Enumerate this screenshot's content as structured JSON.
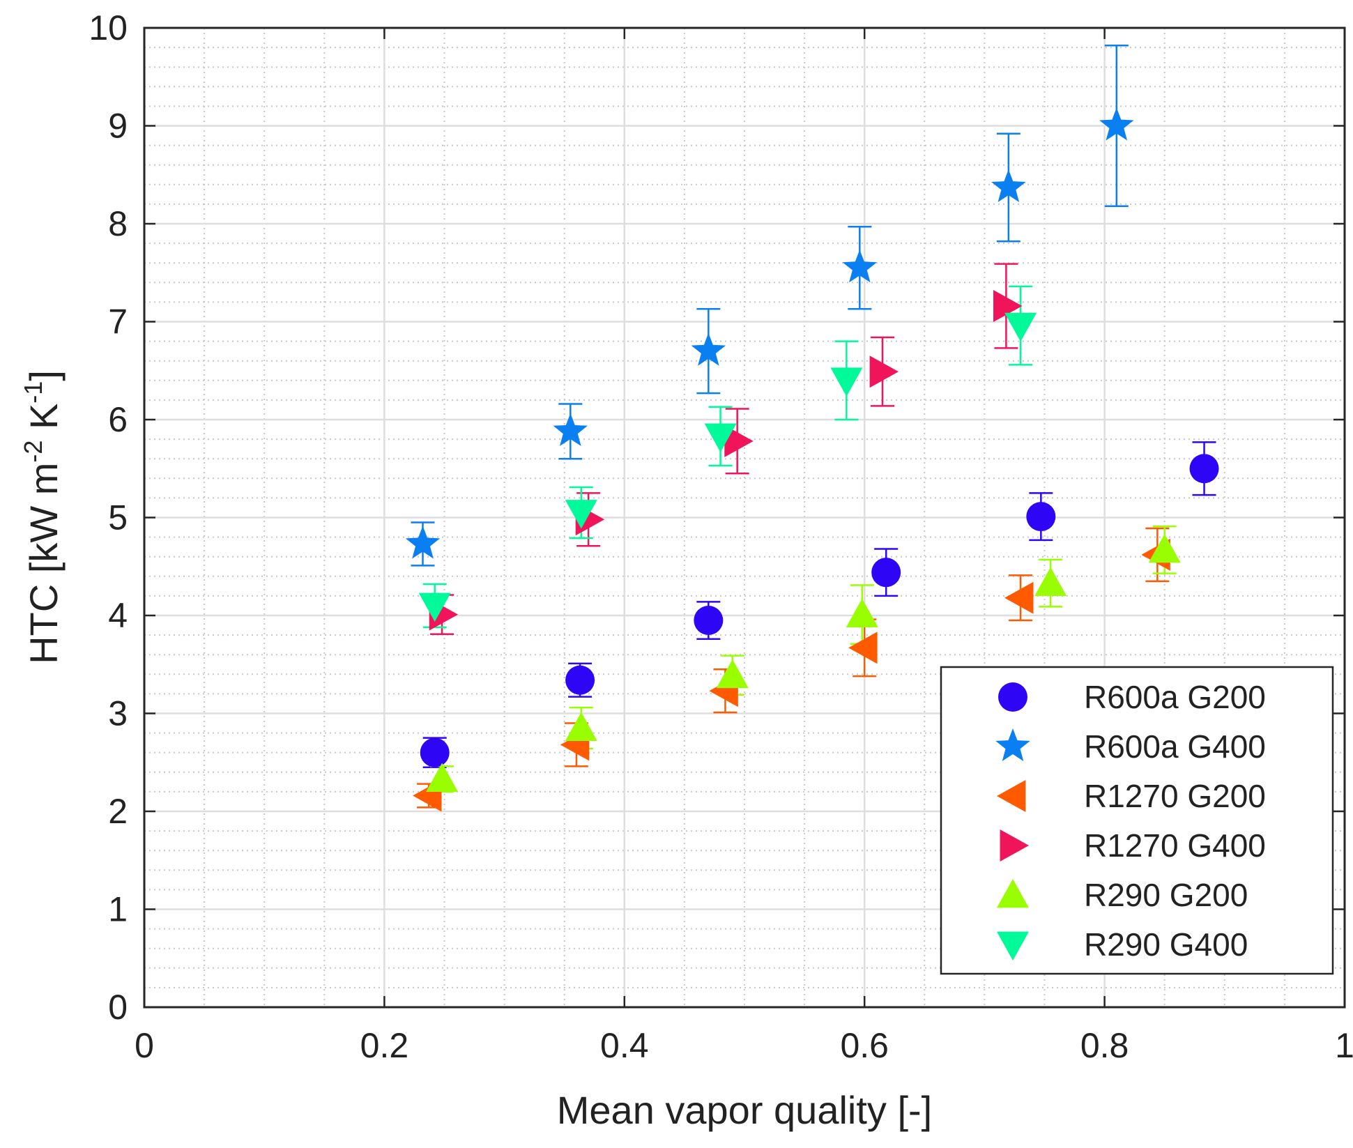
{
  "chart_data": {
    "type": "scatter",
    "title": "",
    "xlabel": "Mean vapor quality [-]",
    "ylabel": {
      "prefix": "HTC [kW m",
      "sup1": "-2",
      "mid": " K",
      "sup2": "-1",
      "suffix": "]"
    },
    "xlim": [
      0,
      1
    ],
    "ylim": [
      0,
      10
    ],
    "xticks": [
      "0",
      "0.2",
      "0.4",
      "0.6",
      "0.8",
      "1"
    ],
    "yticks": [
      "0",
      "1",
      "2",
      "3",
      "4",
      "5",
      "6",
      "7",
      "8",
      "9",
      "10"
    ],
    "grid": true,
    "minor_grid": true,
    "legend_position": "bottom-right",
    "series": [
      {
        "name": "R600a G200",
        "marker": "circle",
        "color": "#2E05F5",
        "points": [
          {
            "x": 0.242,
            "y": 2.6,
            "err": 0.15
          },
          {
            "x": 0.363,
            "y": 3.34,
            "err": 0.17
          },
          {
            "x": 0.47,
            "y": 3.95,
            "err": 0.19
          },
          {
            "x": 0.618,
            "y": 4.44,
            "err": 0.24
          },
          {
            "x": 0.747,
            "y": 5.01,
            "err": 0.24
          },
          {
            "x": 0.883,
            "y": 5.5,
            "err": 0.27
          }
        ]
      },
      {
        "name": "R600a G400",
        "marker": "star",
        "color": "#0A7FF2",
        "points": [
          {
            "x": 0.232,
            "y": 4.73,
            "err": 0.22
          },
          {
            "x": 0.355,
            "y": 5.88,
            "err": 0.28
          },
          {
            "x": 0.47,
            "y": 6.7,
            "err": 0.43
          },
          {
            "x": 0.596,
            "y": 7.55,
            "err": 0.42
          },
          {
            "x": 0.72,
            "y": 8.37,
            "err": 0.55
          },
          {
            "x": 0.81,
            "y": 9.0,
            "err": 0.82
          }
        ]
      },
      {
        "name": "R1270 G200",
        "marker": "triangle-left",
        "color": "#FF5A00",
        "points": [
          {
            "x": 0.237,
            "y": 2.16,
            "err": 0.12
          },
          {
            "x": 0.36,
            "y": 2.68,
            "err": 0.22
          },
          {
            "x": 0.484,
            "y": 3.23,
            "err": 0.22
          },
          {
            "x": 0.6,
            "y": 3.67,
            "err": 0.29
          },
          {
            "x": 0.73,
            "y": 4.18,
            "err": 0.23
          },
          {
            "x": 0.844,
            "y": 4.62,
            "err": 0.27
          }
        ]
      },
      {
        "name": "R1270 G400",
        "marker": "triangle-right",
        "color": "#F0145A",
        "points": [
          {
            "x": 0.248,
            "y": 4.01,
            "err": 0.2
          },
          {
            "x": 0.37,
            "y": 4.98,
            "err": 0.27
          },
          {
            "x": 0.494,
            "y": 5.78,
            "err": 0.33
          },
          {
            "x": 0.615,
            "y": 6.49,
            "err": 0.35
          },
          {
            "x": 0.718,
            "y": 7.16,
            "err": 0.43
          }
        ]
      },
      {
        "name": "R290 G200",
        "marker": "triangle-up",
        "color": "#99FF00",
        "points": [
          {
            "x": 0.248,
            "y": 2.33,
            "err": 0.13
          },
          {
            "x": 0.364,
            "y": 2.85,
            "err": 0.21
          },
          {
            "x": 0.49,
            "y": 3.39,
            "err": 0.2
          },
          {
            "x": 0.598,
            "y": 4.01,
            "err": 0.3
          },
          {
            "x": 0.755,
            "y": 4.33,
            "err": 0.24
          },
          {
            "x": 0.85,
            "y": 4.67,
            "err": 0.24
          }
        ]
      },
      {
        "name": "R290 G400",
        "marker": "triangle-down",
        "color": "#00FA9A",
        "points": [
          {
            "x": 0.242,
            "y": 4.1,
            "err": 0.22
          },
          {
            "x": 0.364,
            "y": 5.05,
            "err": 0.26
          },
          {
            "x": 0.48,
            "y": 5.83,
            "err": 0.3
          },
          {
            "x": 0.585,
            "y": 6.4,
            "err": 0.4
          },
          {
            "x": 0.73,
            "y": 6.96,
            "err": 0.4
          }
        ]
      }
    ]
  }
}
